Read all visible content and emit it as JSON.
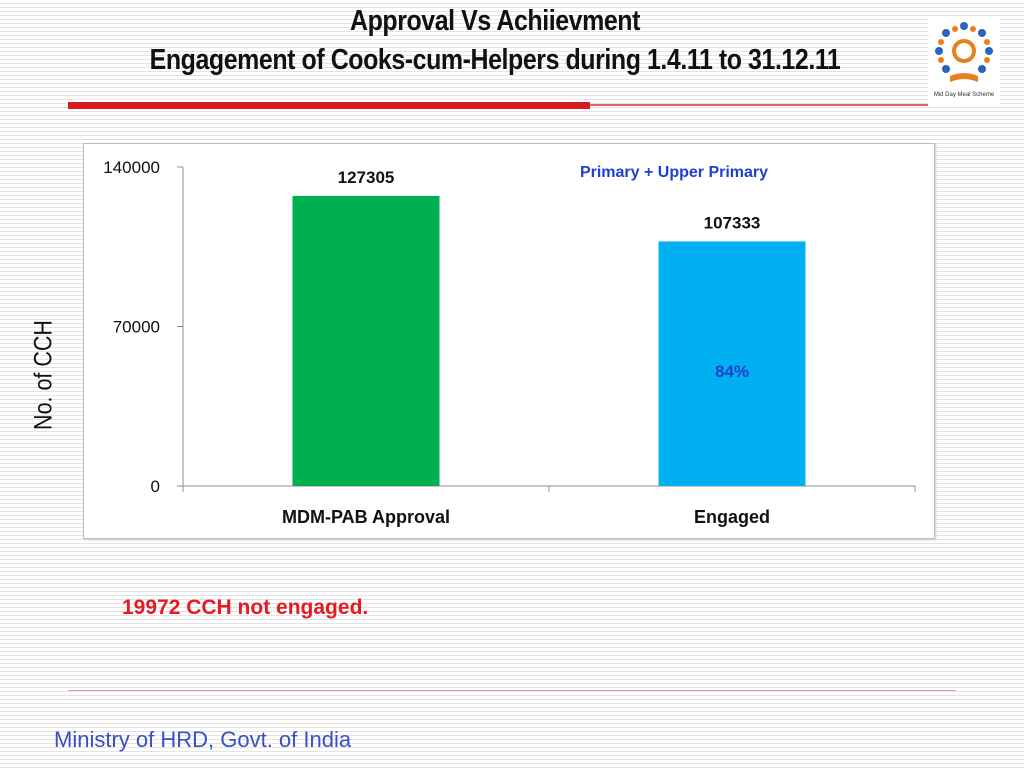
{
  "slide": {
    "title_line1": "Approval Vs Achiievment",
    "title_line2": "Engagement  of Cooks-cum-Helpers  during 1.4.11 to 31.12.11",
    "ylabel": "No. of CCH",
    "note": "19972 CCH not engaged.",
    "footer": "Ministry of HRD, Govt. of India",
    "logo_text": "Mid Day Meal Scheme",
    "colors": {
      "accent_red": "#d71920",
      "footer_blue": "#3b4fc4"
    }
  },
  "chart_data": {
    "type": "bar",
    "categories": [
      "MDM-PAB Approval",
      "Engaged"
    ],
    "values": [
      127305,
      107333
    ],
    "bar_colors": [
      "#00b050",
      "#00b0f0"
    ],
    "ylim": [
      0,
      140000
    ],
    "yticks": [
      "0",
      "70000",
      "140000"
    ],
    "ytick_values": [
      0,
      70000,
      140000
    ],
    "data_labels": [
      "127305",
      "107333"
    ],
    "legend": "Primary + Upper Primary",
    "annotation": "84%",
    "grid": false
  }
}
